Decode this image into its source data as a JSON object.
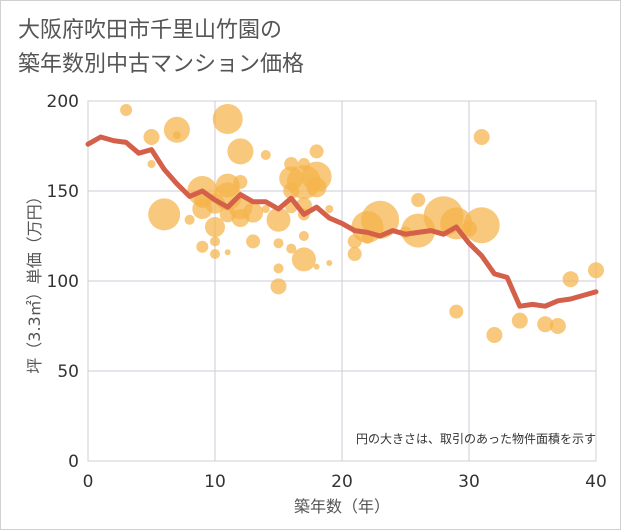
{
  "page": {
    "title_line1": "大阪府吹田市千里山竹園の",
    "title_line2": "築年数別中古マンション価格"
  },
  "chart_data": {
    "type": "scatter",
    "title": "大阪府吹田市千里山竹園の 築年数別中古マンション価格",
    "xlabel": "築年数（年）",
    "ylabel": "坪（3.3㎡）単価（万円）",
    "xlim": [
      0,
      40
    ],
    "ylim": [
      0,
      200
    ],
    "x_ticks": [
      0,
      10,
      20,
      30,
      40
    ],
    "y_ticks": [
      0,
      50,
      100,
      150,
      200
    ],
    "grid": true,
    "annotation": "円の大きさは、取引のあった物件面積を示す",
    "colors": {
      "bubble": "#f5b34a",
      "line": "#d4604a",
      "grid": "#c8cdd8",
      "background": "#ffffff"
    },
    "series": [
      {
        "type": "bubble",
        "points": [
          {
            "x": 3,
            "y": 195,
            "s": 6
          },
          {
            "x": 5,
            "y": 180,
            "s": 8
          },
          {
            "x": 5,
            "y": 165,
            "s": 4
          },
          {
            "x": 6,
            "y": 137,
            "s": 16
          },
          {
            "x": 7,
            "y": 184,
            "s": 13
          },
          {
            "x": 7,
            "y": 181,
            "s": 4
          },
          {
            "x": 8,
            "y": 134,
            "s": 5
          },
          {
            "x": 9,
            "y": 150,
            "s": 15
          },
          {
            "x": 9,
            "y": 145,
            "s": 8
          },
          {
            "x": 9,
            "y": 140,
            "s": 10
          },
          {
            "x": 9,
            "y": 119,
            "s": 6
          },
          {
            "x": 10,
            "y": 143,
            "s": 10
          },
          {
            "x": 10,
            "y": 130,
            "s": 10
          },
          {
            "x": 10,
            "y": 122,
            "s": 5
          },
          {
            "x": 10,
            "y": 115,
            "s": 5
          },
          {
            "x": 11,
            "y": 190,
            "s": 15
          },
          {
            "x": 11,
            "y": 153,
            "s": 12
          },
          {
            "x": 11,
            "y": 147,
            "s": 14
          },
          {
            "x": 11,
            "y": 137,
            "s": 8
          },
          {
            "x": 11,
            "y": 116,
            "s": 3
          },
          {
            "x": 12,
            "y": 172,
            "s": 13
          },
          {
            "x": 12,
            "y": 155,
            "s": 7
          },
          {
            "x": 12,
            "y": 141,
            "s": 12
          },
          {
            "x": 12,
            "y": 135,
            "s": 9
          },
          {
            "x": 13,
            "y": 138,
            "s": 10
          },
          {
            "x": 13,
            "y": 122,
            "s": 7
          },
          {
            "x": 14,
            "y": 170,
            "s": 5
          },
          {
            "x": 14,
            "y": 140,
            "s": 4
          },
          {
            "x": 15,
            "y": 134,
            "s": 12
          },
          {
            "x": 15,
            "y": 121,
            "s": 5
          },
          {
            "x": 15,
            "y": 107,
            "s": 5
          },
          {
            "x": 15,
            "y": 97,
            "s": 8
          },
          {
            "x": 16,
            "y": 165,
            "s": 7
          },
          {
            "x": 16,
            "y": 157,
            "s": 12
          },
          {
            "x": 16,
            "y": 150,
            "s": 8
          },
          {
            "x": 16,
            "y": 141,
            "s": 6
          },
          {
            "x": 16,
            "y": 118,
            "s": 5
          },
          {
            "x": 17,
            "y": 165,
            "s": 6
          },
          {
            "x": 17,
            "y": 155,
            "s": 17
          },
          {
            "x": 17,
            "y": 142,
            "s": 8
          },
          {
            "x": 17,
            "y": 137,
            "s": 6
          },
          {
            "x": 17,
            "y": 125,
            "s": 5
          },
          {
            "x": 17,
            "y": 112,
            "s": 12
          },
          {
            "x": 18,
            "y": 172,
            "s": 7
          },
          {
            "x": 18,
            "y": 158,
            "s": 15
          },
          {
            "x": 18,
            "y": 152,
            "s": 10
          },
          {
            "x": 18,
            "y": 108,
            "s": 3
          },
          {
            "x": 19,
            "y": 140,
            "s": 4
          },
          {
            "x": 19,
            "y": 110,
            "s": 3
          },
          {
            "x": 21,
            "y": 122,
            "s": 7
          },
          {
            "x": 21,
            "y": 115,
            "s": 7
          },
          {
            "x": 22,
            "y": 130,
            "s": 16
          },
          {
            "x": 22,
            "y": 124,
            "s": 6
          },
          {
            "x": 23,
            "y": 134,
            "s": 19
          },
          {
            "x": 25,
            "y": 127,
            "s": 6
          },
          {
            "x": 26,
            "y": 145,
            "s": 7
          },
          {
            "x": 26,
            "y": 128,
            "s": 17
          },
          {
            "x": 28,
            "y": 136,
            "s": 20
          },
          {
            "x": 29,
            "y": 132,
            "s": 16
          },
          {
            "x": 29,
            "y": 83,
            "s": 7
          },
          {
            "x": 30,
            "y": 129,
            "s": 8
          },
          {
            "x": 31,
            "y": 180,
            "s": 8
          },
          {
            "x": 31,
            "y": 131,
            "s": 18
          },
          {
            "x": 32,
            "y": 70,
            "s": 8
          },
          {
            "x": 34,
            "y": 78,
            "s": 8
          },
          {
            "x": 36,
            "y": 76,
            "s": 8
          },
          {
            "x": 37,
            "y": 75,
            "s": 8
          },
          {
            "x": 38,
            "y": 101,
            "s": 8
          },
          {
            "x": 40,
            "y": 106,
            "s": 8
          }
        ]
      },
      {
        "type": "line",
        "x": [
          0,
          1,
          2,
          3,
          4,
          5,
          6,
          7,
          8,
          9,
          10,
          11,
          12,
          13,
          14,
          15,
          16,
          17,
          18,
          19,
          20,
          21,
          22,
          23,
          24,
          25,
          26,
          27,
          28,
          29,
          30,
          31,
          32,
          33,
          34,
          35,
          36,
          37,
          38,
          39,
          40
        ],
        "y": [
          176,
          180,
          178,
          177,
          171,
          173,
          162,
          154,
          147,
          150,
          145,
          141,
          148,
          144,
          144,
          140,
          146,
          137,
          141,
          135,
          132,
          128,
          127,
          125,
          128,
          126,
          127,
          128,
          126,
          130,
          121,
          114,
          104,
          102,
          86,
          87,
          86,
          89,
          90,
          92,
          94
        ]
      }
    ]
  }
}
